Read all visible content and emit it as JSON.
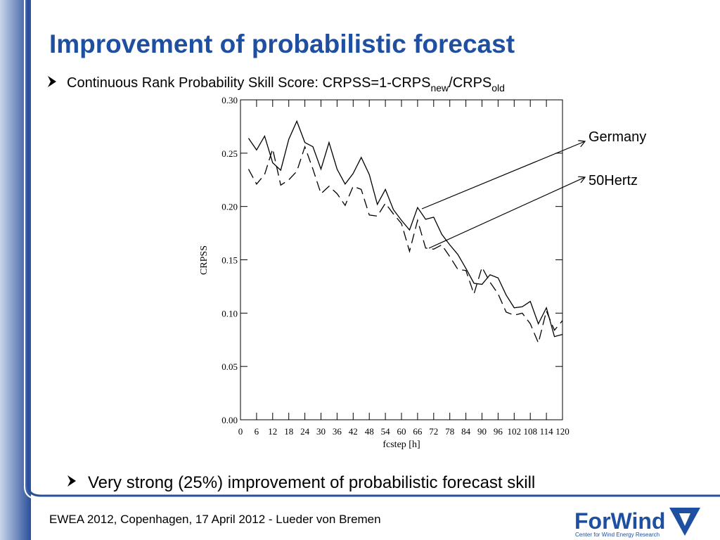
{
  "title": "Improvement of probabilistic forecast",
  "bullet1": {
    "text": "Continuous Rank Probability Skill Score: CRPSS=1-CRPS",
    "sub1": "new",
    "mid": "/CRPS",
    "sub2": "old"
  },
  "bullet2": "Very strong (25%) improvement of probabilistic forecast skill",
  "footer": "EWEA 2012, Copenhagen, 17 April 2012  - Lueder von Bremen",
  "logo": {
    "name": "ForWind",
    "tagline": "Center for Wind Energy Research"
  },
  "chart_data": {
    "type": "line",
    "x_label": "fcstep [h]",
    "y_label": "CRPSS",
    "x": [
      3,
      6,
      9,
      12,
      15,
      18,
      21,
      24,
      27,
      30,
      33,
      36,
      39,
      42,
      45,
      48,
      51,
      54,
      57,
      60,
      63,
      66,
      69,
      72,
      75,
      78,
      81,
      84,
      87,
      90,
      93,
      96,
      99,
      102,
      105,
      108,
      111,
      114,
      117,
      120
    ],
    "series": [
      {
        "name": "Germany",
        "color": "#000000",
        "line_style": "solid",
        "values": [
          0.264,
          0.253,
          0.266,
          0.241,
          0.234,
          0.263,
          0.28,
          0.26,
          0.256,
          0.235,
          0.26,
          0.235,
          0.221,
          0.231,
          0.246,
          0.23,
          0.202,
          0.216,
          0.197,
          0.187,
          0.178,
          0.199,
          0.188,
          0.19,
          0.174,
          0.164,
          0.155,
          0.142,
          0.128,
          0.127,
          0.136,
          0.133,
          0.117,
          0.105,
          0.106,
          0.111,
          0.09,
          0.105,
          0.078,
          0.08
        ]
      },
      {
        "name": "50Hertz",
        "color": "#000000",
        "line_style": "dashed",
        "values": [
          0.235,
          0.221,
          0.23,
          0.254,
          0.22,
          0.225,
          0.233,
          0.256,
          0.235,
          0.212,
          0.219,
          0.212,
          0.201,
          0.219,
          0.216,
          0.192,
          0.191,
          0.203,
          0.193,
          0.184,
          0.158,
          0.187,
          0.161,
          0.16,
          0.164,
          0.153,
          0.141,
          0.14,
          0.118,
          0.143,
          0.129,
          0.118,
          0.101,
          0.098,
          0.1,
          0.09,
          0.072,
          0.102,
          0.084,
          0.093
        ]
      }
    ],
    "xlim": [
      0,
      120
    ],
    "xticks": [
      0,
      6,
      12,
      18,
      24,
      30,
      36,
      42,
      48,
      54,
      60,
      66,
      72,
      78,
      84,
      90,
      96,
      102,
      108,
      114,
      120
    ],
    "ylim": [
      0,
      0.3
    ],
    "yticks": [
      {
        "value": 0,
        "label": "0.00"
      },
      {
        "value": 0.05,
        "label": "0.05"
      },
      {
        "value": 0.1,
        "label": "0.10"
      },
      {
        "value": 0.15,
        "label": "0.15"
      },
      {
        "value": 0.2,
        "label": "0.20"
      },
      {
        "value": 0.25,
        "label": "0.25"
      },
      {
        "value": 0.3,
        "label": "0.30"
      }
    ]
  }
}
